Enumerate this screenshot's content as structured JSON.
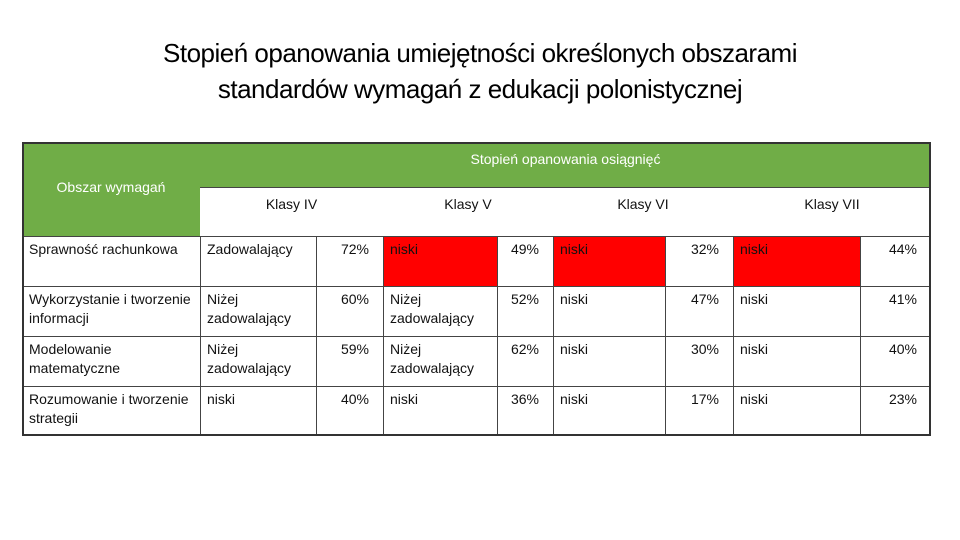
{
  "header": {
    "title": [
      "Stopień opanowania umiejętności określonych obszarami",
      "standardów wymagań z edukacji polonistycznej"
    ]
  },
  "table": {
    "group_header": "Stopień opanowania osiągnięć",
    "first_column_header": "Obszar wymagań",
    "class_headers": [
      "Klasy IV",
      "Klasy V",
      "Klasy VI",
      "Klasy VII"
    ],
    "highlight_color": "#ff0000",
    "rows": [
      {
        "area": "Sprawność rachunkowa",
        "cells": [
          {
            "level": "Zadowalający",
            "percent": "72%",
            "highlighted": false
          },
          {
            "level": "niski",
            "percent": "49%",
            "highlighted": true
          },
          {
            "level": "niski",
            "percent": "32%",
            "highlighted": true
          },
          {
            "level": "niski",
            "percent": "44%",
            "highlighted": true
          }
        ]
      },
      {
        "area": "Wykorzystanie i tworzenie informacji",
        "cells": [
          {
            "level": "Niżej zadowalający",
            "percent": "60%",
            "highlighted": false
          },
          {
            "level": "Niżej zadowalający",
            "percent": "52%",
            "highlighted": false
          },
          {
            "level": "niski",
            "percent": "47%",
            "highlighted": false
          },
          {
            "level": "niski",
            "percent": "41%",
            "highlighted": false
          }
        ]
      },
      {
        "area": "Modelowanie matematyczne",
        "cells": [
          {
            "level": "Niżej zadowalający",
            "percent": "59%",
            "highlighted": false
          },
          {
            "level": "Niżej zadowalający",
            "percent": "62%",
            "highlighted": false
          },
          {
            "level": "niski",
            "percent": "30%",
            "highlighted": false
          },
          {
            "level": "niski",
            "percent": "40%",
            "highlighted": false
          }
        ]
      },
      {
        "area": "Rozumowanie i tworzenie strategii",
        "cells": [
          {
            "level": "niski",
            "percent": "40%",
            "highlighted": false
          },
          {
            "level": "niski",
            "percent": "36%",
            "highlighted": false
          },
          {
            "level": "niski",
            "percent": "17%",
            "highlighted": false
          },
          {
            "level": "niski",
            "percent": "23%",
            "highlighted": false
          }
        ]
      }
    ]
  }
}
